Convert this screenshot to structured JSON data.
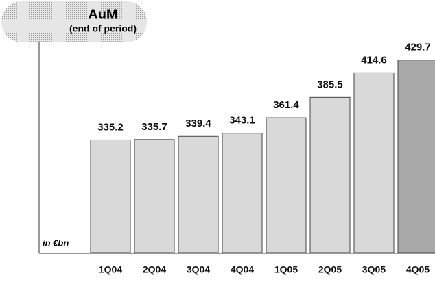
{
  "chart_data": {
    "type": "bar",
    "title": "AuM",
    "subtitle": "(end of period)",
    "unit_label": "in €bn",
    "categories": [
      "1Q04",
      "2Q04",
      "3Q04",
      "4Q04",
      "1Q05",
      "2Q05",
      "3Q05",
      "4Q05"
    ],
    "values": [
      335.2,
      335.7,
      339.4,
      343.1,
      361.4,
      385.5,
      414.6,
      429.7
    ],
    "colors": [
      "#d9d9d9",
      "#d9d9d9",
      "#d9d9d9",
      "#d9d9d9",
      "#d9d9d9",
      "#d9d9d9",
      "#d9d9d9",
      "#a9a9a9"
    ],
    "ylim": [
      202,
      440
    ]
  }
}
